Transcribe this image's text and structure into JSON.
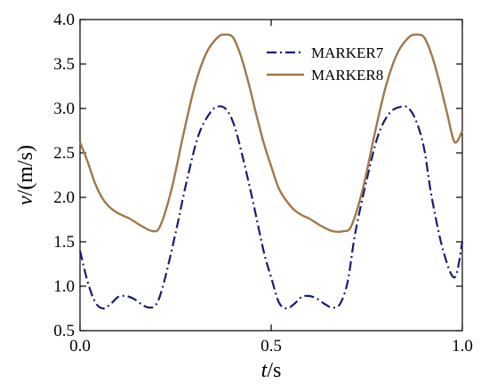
{
  "chart_data": {
    "type": "line",
    "title": "",
    "xlabel": {
      "italic": "t",
      "rest": "/s"
    },
    "ylabel": {
      "italic": "v",
      "rest": "/(m/s)"
    },
    "xlim": [
      0.0,
      1.0
    ],
    "ylim": [
      0.5,
      4.0
    ],
    "xticks": [
      "0.0",
      "0.5",
      "1.0"
    ],
    "yticks": [
      "0.5",
      "1.0",
      "1.5",
      "2.0",
      "2.5",
      "3.0",
      "3.5",
      "4.0"
    ],
    "grid": false,
    "legend_position": "top-right",
    "series": [
      {
        "name": "MARKER7",
        "color": "#1a1a7a",
        "style": "dash-dot",
        "x": [
          0.0,
          0.02,
          0.04,
          0.06,
          0.08,
          0.1,
          0.12,
          0.14,
          0.16,
          0.18,
          0.2,
          0.22,
          0.25,
          0.28,
          0.31,
          0.34,
          0.36,
          0.38,
          0.4,
          0.42,
          0.45,
          0.48,
          0.5,
          0.52,
          0.54,
          0.56,
          0.58,
          0.6,
          0.62,
          0.64,
          0.66,
          0.68,
          0.7,
          0.72,
          0.75,
          0.78,
          0.81,
          0.84,
          0.86,
          0.88,
          0.9,
          0.92,
          0.95,
          0.98,
          1.0
        ],
        "y": [
          1.4,
          1.05,
          0.82,
          0.75,
          0.8,
          0.88,
          0.89,
          0.86,
          0.8,
          0.76,
          0.8,
          1.05,
          1.6,
          2.2,
          2.7,
          2.95,
          3.02,
          3.0,
          2.85,
          2.55,
          2.0,
          1.4,
          1.1,
          0.82,
          0.75,
          0.8,
          0.88,
          0.89,
          0.86,
          0.8,
          0.76,
          0.8,
          1.05,
          1.6,
          2.2,
          2.7,
          2.95,
          3.02,
          3.0,
          2.85,
          2.55,
          2.0,
          1.4,
          1.1,
          1.5
        ]
      },
      {
        "name": "MARKER8",
        "color": "#a0784a",
        "style": "solid",
        "x": [
          0.0,
          0.02,
          0.04,
          0.06,
          0.08,
          0.1,
          0.13,
          0.16,
          0.19,
          0.21,
          0.24,
          0.27,
          0.3,
          0.33,
          0.36,
          0.38,
          0.4,
          0.42,
          0.44,
          0.46,
          0.48,
          0.5,
          0.52,
          0.54,
          0.56,
          0.58,
          0.6,
          0.63,
          0.66,
          0.69,
          0.71,
          0.74,
          0.77,
          0.8,
          0.83,
          0.86,
          0.88,
          0.9,
          0.92,
          0.94,
          0.96,
          0.98,
          1.0
        ],
        "y": [
          2.62,
          2.4,
          2.15,
          1.98,
          1.88,
          1.82,
          1.76,
          1.68,
          1.62,
          1.68,
          2.1,
          2.7,
          3.25,
          3.62,
          3.8,
          3.83,
          3.8,
          3.6,
          3.3,
          2.95,
          2.62,
          2.35,
          2.1,
          1.96,
          1.86,
          1.8,
          1.76,
          1.68,
          1.62,
          1.62,
          1.68,
          2.1,
          2.7,
          3.25,
          3.62,
          3.8,
          3.83,
          3.8,
          3.6,
          3.3,
          2.95,
          2.62,
          2.75
        ]
      }
    ]
  }
}
